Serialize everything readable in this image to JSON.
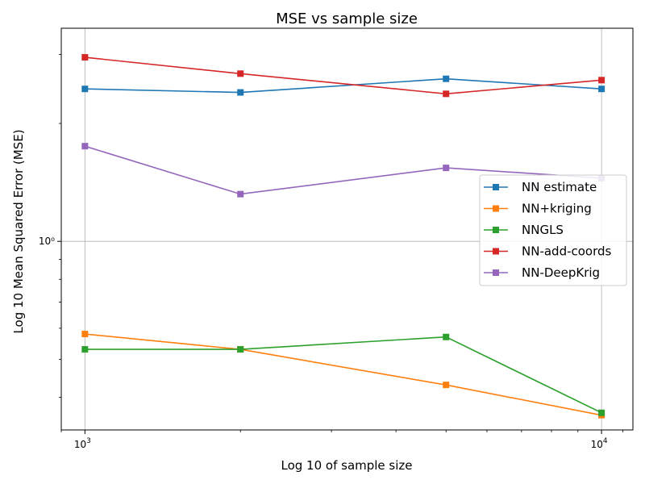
{
  "chart_data": {
    "type": "line",
    "title": "MSE vs sample size",
    "xlabel": "Log 10 of sample size",
    "ylabel": "Log 10 Mean Squared Error (MSE)",
    "x_scale": "log",
    "y_scale": "log",
    "x": [
      1000,
      2000,
      5000,
      10000
    ],
    "x_ticks": [
      {
        "value": 1000,
        "base": "10",
        "exp": "3"
      },
      {
        "value": 10000,
        "base": "10",
        "exp": "4"
      }
    ],
    "y_ticks": [
      {
        "value": 1,
        "label": "10⁰"
      }
    ],
    "xlim": [
      900,
      11500
    ],
    "ylim": [
      0.33,
      3.5
    ],
    "grid": true,
    "legend_position": "center-right",
    "series": [
      {
        "name": "NN estimate",
        "color": "#1f77b4",
        "marker": "square",
        "values": [
          2.45,
          2.4,
          2.6,
          2.45
        ]
      },
      {
        "name": "NN+kriging",
        "color": "#ff7f0e",
        "marker": "square",
        "values": [
          0.58,
          0.53,
          0.43,
          0.36
        ]
      },
      {
        "name": "NNGLS",
        "color": "#2ca02c",
        "marker": "square",
        "values": [
          0.53,
          0.53,
          0.57,
          0.365
        ]
      },
      {
        "name": "NN-add-coords",
        "color": "#d62728",
        "marker": "square",
        "values": [
          2.95,
          2.68,
          2.38,
          2.58
        ]
      },
      {
        "name": "NN-DeepKrig",
        "color": "#9467bd",
        "marker": "square",
        "values": [
          1.75,
          1.32,
          1.54,
          1.45
        ]
      }
    ]
  }
}
